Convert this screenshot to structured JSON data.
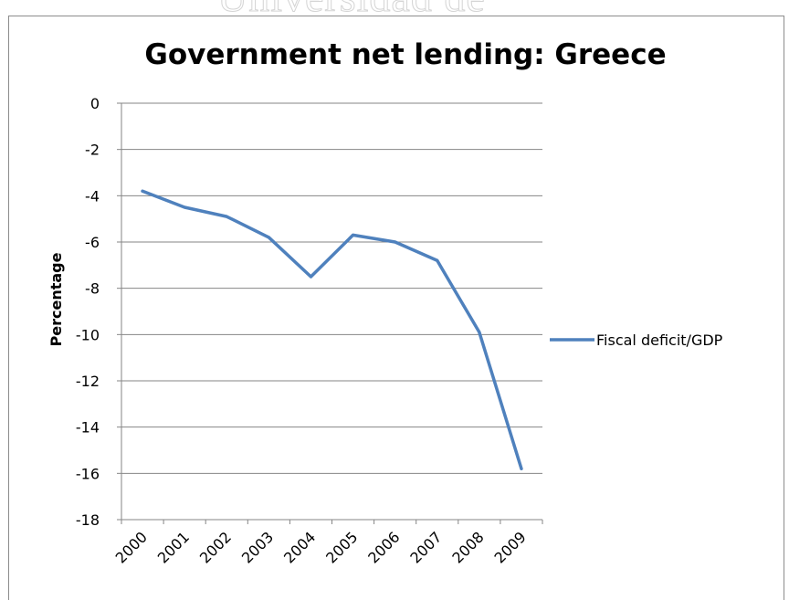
{
  "watermark": "Universidad de",
  "chart_data": {
    "type": "line",
    "title": "Government net lending: Greece",
    "xlabel": "",
    "ylabel": "Percentage",
    "categories": [
      "2000",
      "2001",
      "2002",
      "2003",
      "2004",
      "2005",
      "2006",
      "2007",
      "2008",
      "2009"
    ],
    "series": [
      {
        "name": "Fiscal deficit/GDP",
        "values": [
          -3.8,
          -4.5,
          -4.9,
          -5.8,
          -7.5,
          -5.7,
          -6.0,
          -6.8,
          -9.9,
          -15.8
        ],
        "color": "#4f81bd"
      }
    ],
    "ylim": [
      -18,
      0
    ],
    "yticks": [
      0,
      -2,
      -4,
      -6,
      -8,
      -10,
      -12,
      -14,
      -16,
      -18
    ],
    "grid": true,
    "legend_position": "right",
    "gridline_color": "#868686"
  }
}
